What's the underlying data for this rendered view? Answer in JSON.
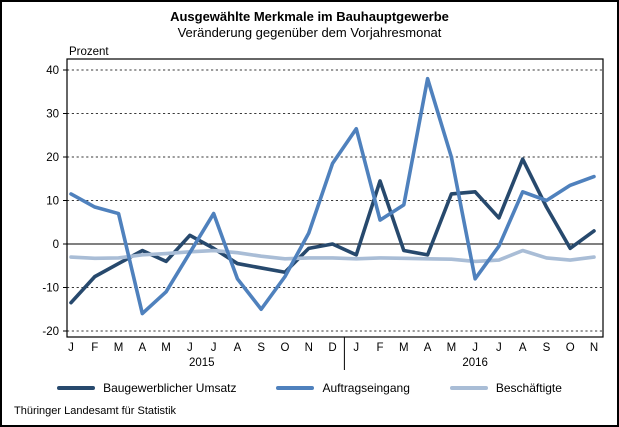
{
  "title": "Ausgewählte Merkmale im Bauhauptgewerbe",
  "subtitle": "Veränderung gegenüber dem Vorjahresmonat",
  "y_axis_unit": "Prozent",
  "footer": "Thüringer Landesamt für Statistik",
  "chart_data": {
    "type": "line",
    "title": "Ausgewählte Merkmale im Bauhauptgewerbe",
    "subtitle": "Veränderung gegenüber dem Vorjahresmonat",
    "ylabel": "Prozent",
    "ylim": [
      -20,
      40
    ],
    "y_ticks": [
      40,
      30,
      20,
      10,
      0,
      -10,
      -20
    ],
    "grid": "dashed horizontal lines, solid zero line",
    "legend_position": "bottom",
    "x_tick_labels": [
      "J",
      "F",
      "M",
      "A",
      "M",
      "J",
      "J",
      "A",
      "S",
      "O",
      "N",
      "D",
      "J",
      "F",
      "M",
      "A",
      "M",
      "J",
      "J",
      "A",
      "S",
      "O",
      "N"
    ],
    "year_groups": [
      {
        "label": "2015",
        "start_index": 0,
        "end_index": 11
      },
      {
        "label": "2016",
        "start_index": 12,
        "end_index": 22
      }
    ],
    "series": [
      {
        "name": "Baugewerblicher Umsatz",
        "color": "#27496d",
        "values": [
          -13.5,
          -7.5,
          -4.5,
          -1.5,
          -4,
          2,
          -1,
          -4.5,
          -5.5,
          -6.5,
          -1,
          0,
          -2.5,
          14.5,
          -1.5,
          -2.5,
          11.5,
          12,
          6,
          19.5,
          8.5,
          -1,
          3
        ]
      },
      {
        "name": "Auftragseingang",
        "color": "#4f81bd",
        "values": [
          11.5,
          8.5,
          7,
          -16,
          -11,
          -2,
          7,
          -8,
          -15,
          -7.5,
          2.5,
          18.5,
          26.5,
          5.5,
          9,
          38,
          20,
          -8,
          -0.5,
          12,
          10,
          13.5,
          15.5
        ]
      },
      {
        "name": "Beschäftigte",
        "color": "#a9bdd6",
        "values": [
          -3,
          -3.3,
          -3.2,
          -2.5,
          -2.2,
          -1.8,
          -1.5,
          -2,
          -2.8,
          -3.4,
          -3.2,
          -3.2,
          -3.4,
          -3.2,
          -3.3,
          -3.4,
          -3.5,
          -4,
          -3.7,
          -1.5,
          -3.2,
          -3.7,
          -3
        ]
      }
    ]
  }
}
